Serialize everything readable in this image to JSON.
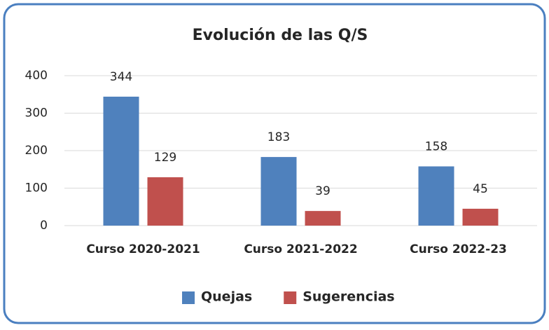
{
  "chart_data": {
    "type": "bar",
    "title": "Evolución de las Q/S",
    "categories": [
      "Curso 2020-2021",
      "Curso 2021-2022",
      "Curso 2022-23"
    ],
    "series": [
      {
        "name": "Quejas",
        "color": "#4f81bd",
        "values": [
          344,
          183,
          158
        ]
      },
      {
        "name": "Sugerencias",
        "color": "#c0504d",
        "values": [
          129,
          39,
          45
        ]
      }
    ],
    "ylim": [
      0,
      400
    ],
    "yticks": [
      0,
      100,
      200,
      300,
      400
    ],
    "grid": true,
    "legend": "bottom"
  }
}
